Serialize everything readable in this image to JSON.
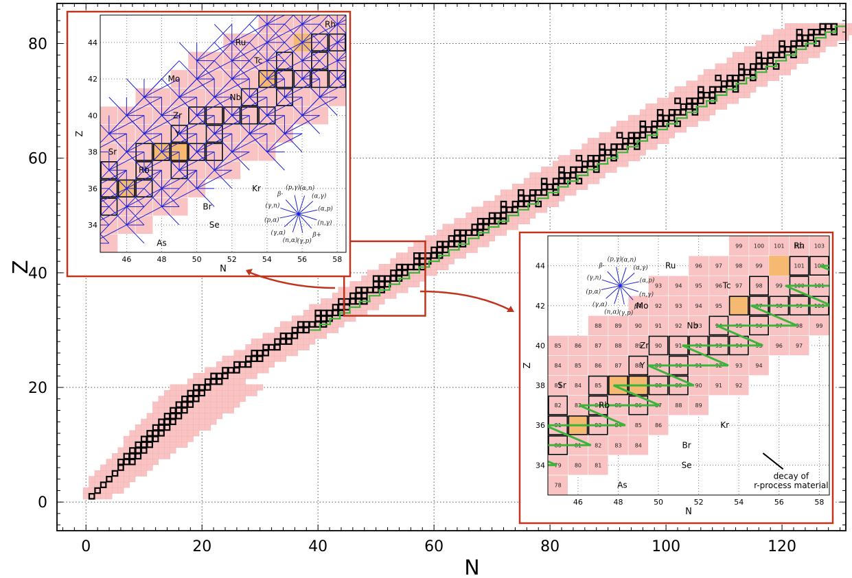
{
  "chart_data": [
    {
      "type": "scatter",
      "title": "",
      "xlabel": "N",
      "ylabel": "Z",
      "xlim": [
        -5,
        131
      ],
      "ylim": [
        -5,
        87
      ],
      "x_ticks": [
        0,
        20,
        40,
        60,
        80,
        100,
        120
      ],
      "y_ticks": [
        0,
        20,
        40,
        60,
        80
      ],
      "grid": "dotted",
      "colors": {
        "network_nuclide": "#f9c3c3",
        "stable_nuclide": "#000000",
        "r_process_seed": "#f5b971",
        "r_process_path": "#3cb43c",
        "highlight_box": "#c0331c"
      },
      "zoom_region": {
        "n_range": [
          44.5,
          58.5
        ],
        "z_range": [
          32.5,
          45.5
        ]
      }
    },
    {
      "type": "scatter",
      "name": "inset-reaction-network",
      "xlabel": "N",
      "ylabel": "Z",
      "xlim": [
        44.5,
        58.5
      ],
      "ylim": [
        32.5,
        45.5
      ],
      "x_ticks": [
        46,
        48,
        50,
        52,
        54,
        56,
        58
      ],
      "y_ticks": [
        34,
        36,
        38,
        40,
        42,
        44
      ],
      "element_labels": [
        {
          "text": "Ru",
          "n": 52.5,
          "z": 44
        },
        {
          "text": "Rh",
          "n": 57.6,
          "z": 45
        },
        {
          "text": "Tc",
          "n": 53.5,
          "z": 43
        },
        {
          "text": "Mo",
          "n": 48.7,
          "z": 42
        },
        {
          "text": "Nb",
          "n": 52.2,
          "z": 41
        },
        {
          "text": "Zr",
          "n": 48.9,
          "z": 40
        },
        {
          "text": "Y",
          "n": 48.9,
          "z": 39
        },
        {
          "text": "Sr",
          "n": 45.2,
          "z": 38
        },
        {
          "text": "Rb",
          "n": 47.0,
          "z": 37
        },
        {
          "text": "Kr",
          "n": 53.4,
          "z": 36
        },
        {
          "text": "Br",
          "n": 50.6,
          "z": 35
        },
        {
          "text": "Se",
          "n": 51.0,
          "z": 34
        },
        {
          "text": "As",
          "n": 48.0,
          "z": 33
        }
      ],
      "legend_arrows": [
        "(α,n)",
        "(α,γ)",
        "(α,p)",
        "(n,γ)",
        "β+",
        "(γ,p)",
        "(n,α)",
        "(γ,α)",
        "(p,α)",
        "(γ,n)",
        "β-",
        "(p,γ)"
      ]
    },
    {
      "type": "scatter",
      "name": "inset-r-process-decay",
      "xlabel": "N",
      "ylabel": "Z",
      "xlim": [
        44.5,
        58.5
      ],
      "ylim": [
        32.5,
        45.5
      ],
      "x_ticks": [
        46,
        48,
        50,
        52,
        54,
        56,
        58
      ],
      "y_ticks": [
        34,
        36,
        38,
        40,
        42,
        44
      ],
      "element_labels": [
        {
          "text": "Rh",
          "n": 57.0,
          "z": 45
        },
        {
          "text": "Ru",
          "n": 50.6,
          "z": 44
        },
        {
          "text": "Tc",
          "n": 53.4,
          "z": 43
        },
        {
          "text": "Mo",
          "n": 49.2,
          "z": 42
        },
        {
          "text": "Nb",
          "n": 51.7,
          "z": 41
        },
        {
          "text": "Zr",
          "n": 49.3,
          "z": 40
        },
        {
          "text": "Y",
          "n": 49.2,
          "z": 39
        },
        {
          "text": "Sr",
          "n": 45.2,
          "z": 38
        },
        {
          "text": "Rb",
          "n": 47.3,
          "z": 37
        },
        {
          "text": "Kr",
          "n": 53.3,
          "z": 36
        },
        {
          "text": "Br",
          "n": 51.4,
          "z": 35
        },
        {
          "text": "Se",
          "n": 51.4,
          "z": 34
        },
        {
          "text": "As",
          "n": 48.2,
          "z": 33
        }
      ],
      "legend_arrows": [
        "(α,n)",
        "(α,γ)",
        "(α,p)",
        "(n,γ)",
        "β+",
        "(γ,p)",
        "(n,α)",
        "(γ,α)",
        "(p,α)",
        "(γ,n)",
        "β-",
        "(p,γ)"
      ],
      "annotation": "decay of r-process material"
    }
  ]
}
